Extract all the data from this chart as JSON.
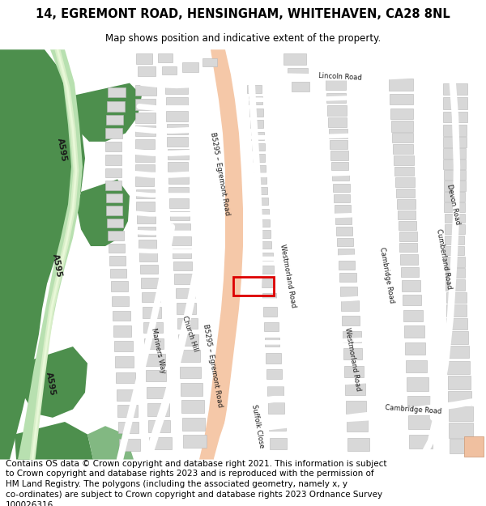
{
  "title": "14, EGREMONT ROAD, HENSINGHAM, WHITEHAVEN, CA28 8NL",
  "subtitle": "Map shows position and indicative extent of the property.",
  "footer_line1": "Contains OS data © Crown copyright and database right 2021. This information is subject",
  "footer_line2": "to Crown copyright and database rights 2023 and is reproduced with the permission of",
  "footer_line3": "HM Land Registry. The polygons (including the associated geometry, namely x, y",
  "footer_line4": "co-ordinates) are subject to Crown copyright and database rights 2023 Ordnance Survey",
  "footer_line5": "100026316.",
  "bg_color": "#ffffff",
  "map_bg": "#f2f2f2",
  "road_major_color": "#f5c8a8",
  "building_color": "#d8d8d8",
  "building_edge": "#b8b8b8",
  "green_dark": "#4d8f4d",
  "green_medium": "#82b882",
  "green_light": "#b8e0b0",
  "highlight_color": "#dd0000",
  "title_fontsize": 10.5,
  "subtitle_fontsize": 8.5,
  "footer_fontsize": 7.5
}
